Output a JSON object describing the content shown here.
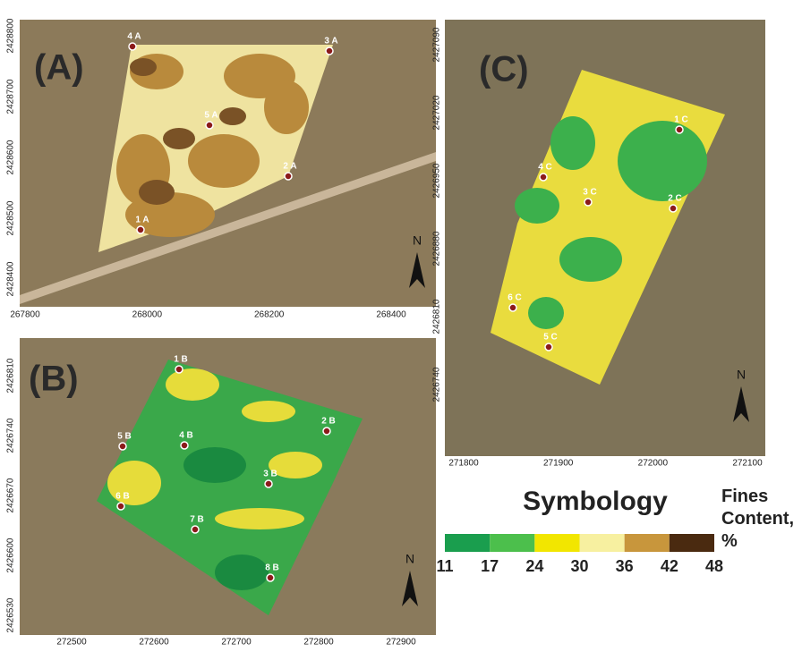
{
  "panels": [
    {
      "label": "(A)",
      "north": "N",
      "x_ticks": [
        267800,
        268000,
        268200,
        268400
      ],
      "y_ticks": [
        2428800,
        2428700,
        2428600,
        2428500,
        2428400
      ],
      "samples": [
        "4 A",
        "3 A",
        "5 A",
        "2 A",
        "1 A"
      ]
    },
    {
      "label": "(B)",
      "north": "N",
      "x_ticks": [
        272500,
        272600,
        272700,
        272800,
        272900
      ],
      "y_ticks": [
        2426810,
        2426740,
        2426670,
        2426600,
        2426530
      ],
      "samples": [
        "1 B",
        "2 B",
        "5 B",
        "4 B",
        "3 B",
        "6 B",
        "7 B",
        "8 B"
      ]
    },
    {
      "label": "(C)",
      "north": "N",
      "x_ticks": [
        271800,
        271900,
        272000,
        272100
      ],
      "y_ticks": [
        2427090,
        2427020,
        2426950,
        2426880,
        2426810,
        2426740
      ],
      "samples": [
        "1 C",
        "4 C",
        "3 C",
        "2 C",
        "6 C",
        "5 C"
      ]
    }
  ],
  "legend": {
    "title": "Symbology",
    "units": "Fines Content, %",
    "ticks": [
      11,
      17,
      24,
      30,
      36,
      42,
      48
    ],
    "colors": [
      "#1a9e4e",
      "#4cbf4c",
      "#f2e600",
      "#f7f0a0",
      "#c8963c",
      "#4a2a10"
    ]
  }
}
